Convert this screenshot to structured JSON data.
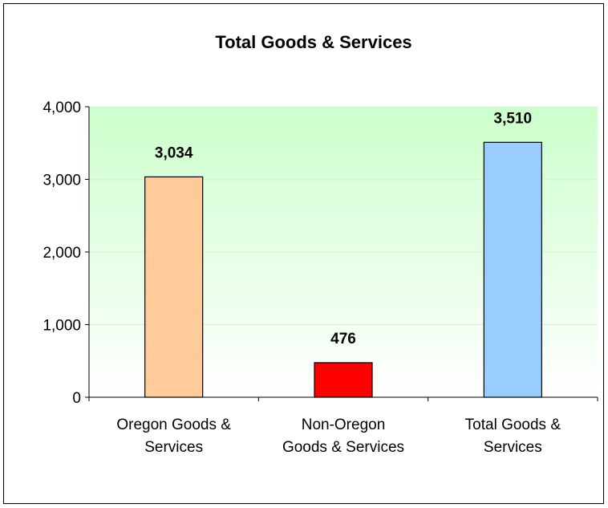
{
  "chart_data": {
    "type": "bar",
    "title": "Total Goods & Services",
    "categories": [
      [
        "Oregon Goods &",
        "Services"
      ],
      [
        "Non-Oregon",
        "Goods & Services"
      ],
      [
        "Total Goods &",
        "Services"
      ]
    ],
    "values": [
      3034,
      476,
      3510
    ],
    "data_labels": [
      "3,034",
      "476",
      "3,510"
    ],
    "bar_colors": [
      "#FFCC99",
      "#FF0000",
      "#99CCFF"
    ],
    "y_ticks": [
      0,
      1000,
      2000,
      3000,
      4000
    ],
    "y_tick_labels": [
      "0",
      "1,000",
      "2,000",
      "3,000",
      "4,000"
    ],
    "ylim": [
      0,
      4000
    ],
    "xlabel": "",
    "ylabel": "",
    "grid": true,
    "legend": "none",
    "plot_background": {
      "top": "#CCFFCC",
      "bottom": "#FFFFFF"
    }
  }
}
